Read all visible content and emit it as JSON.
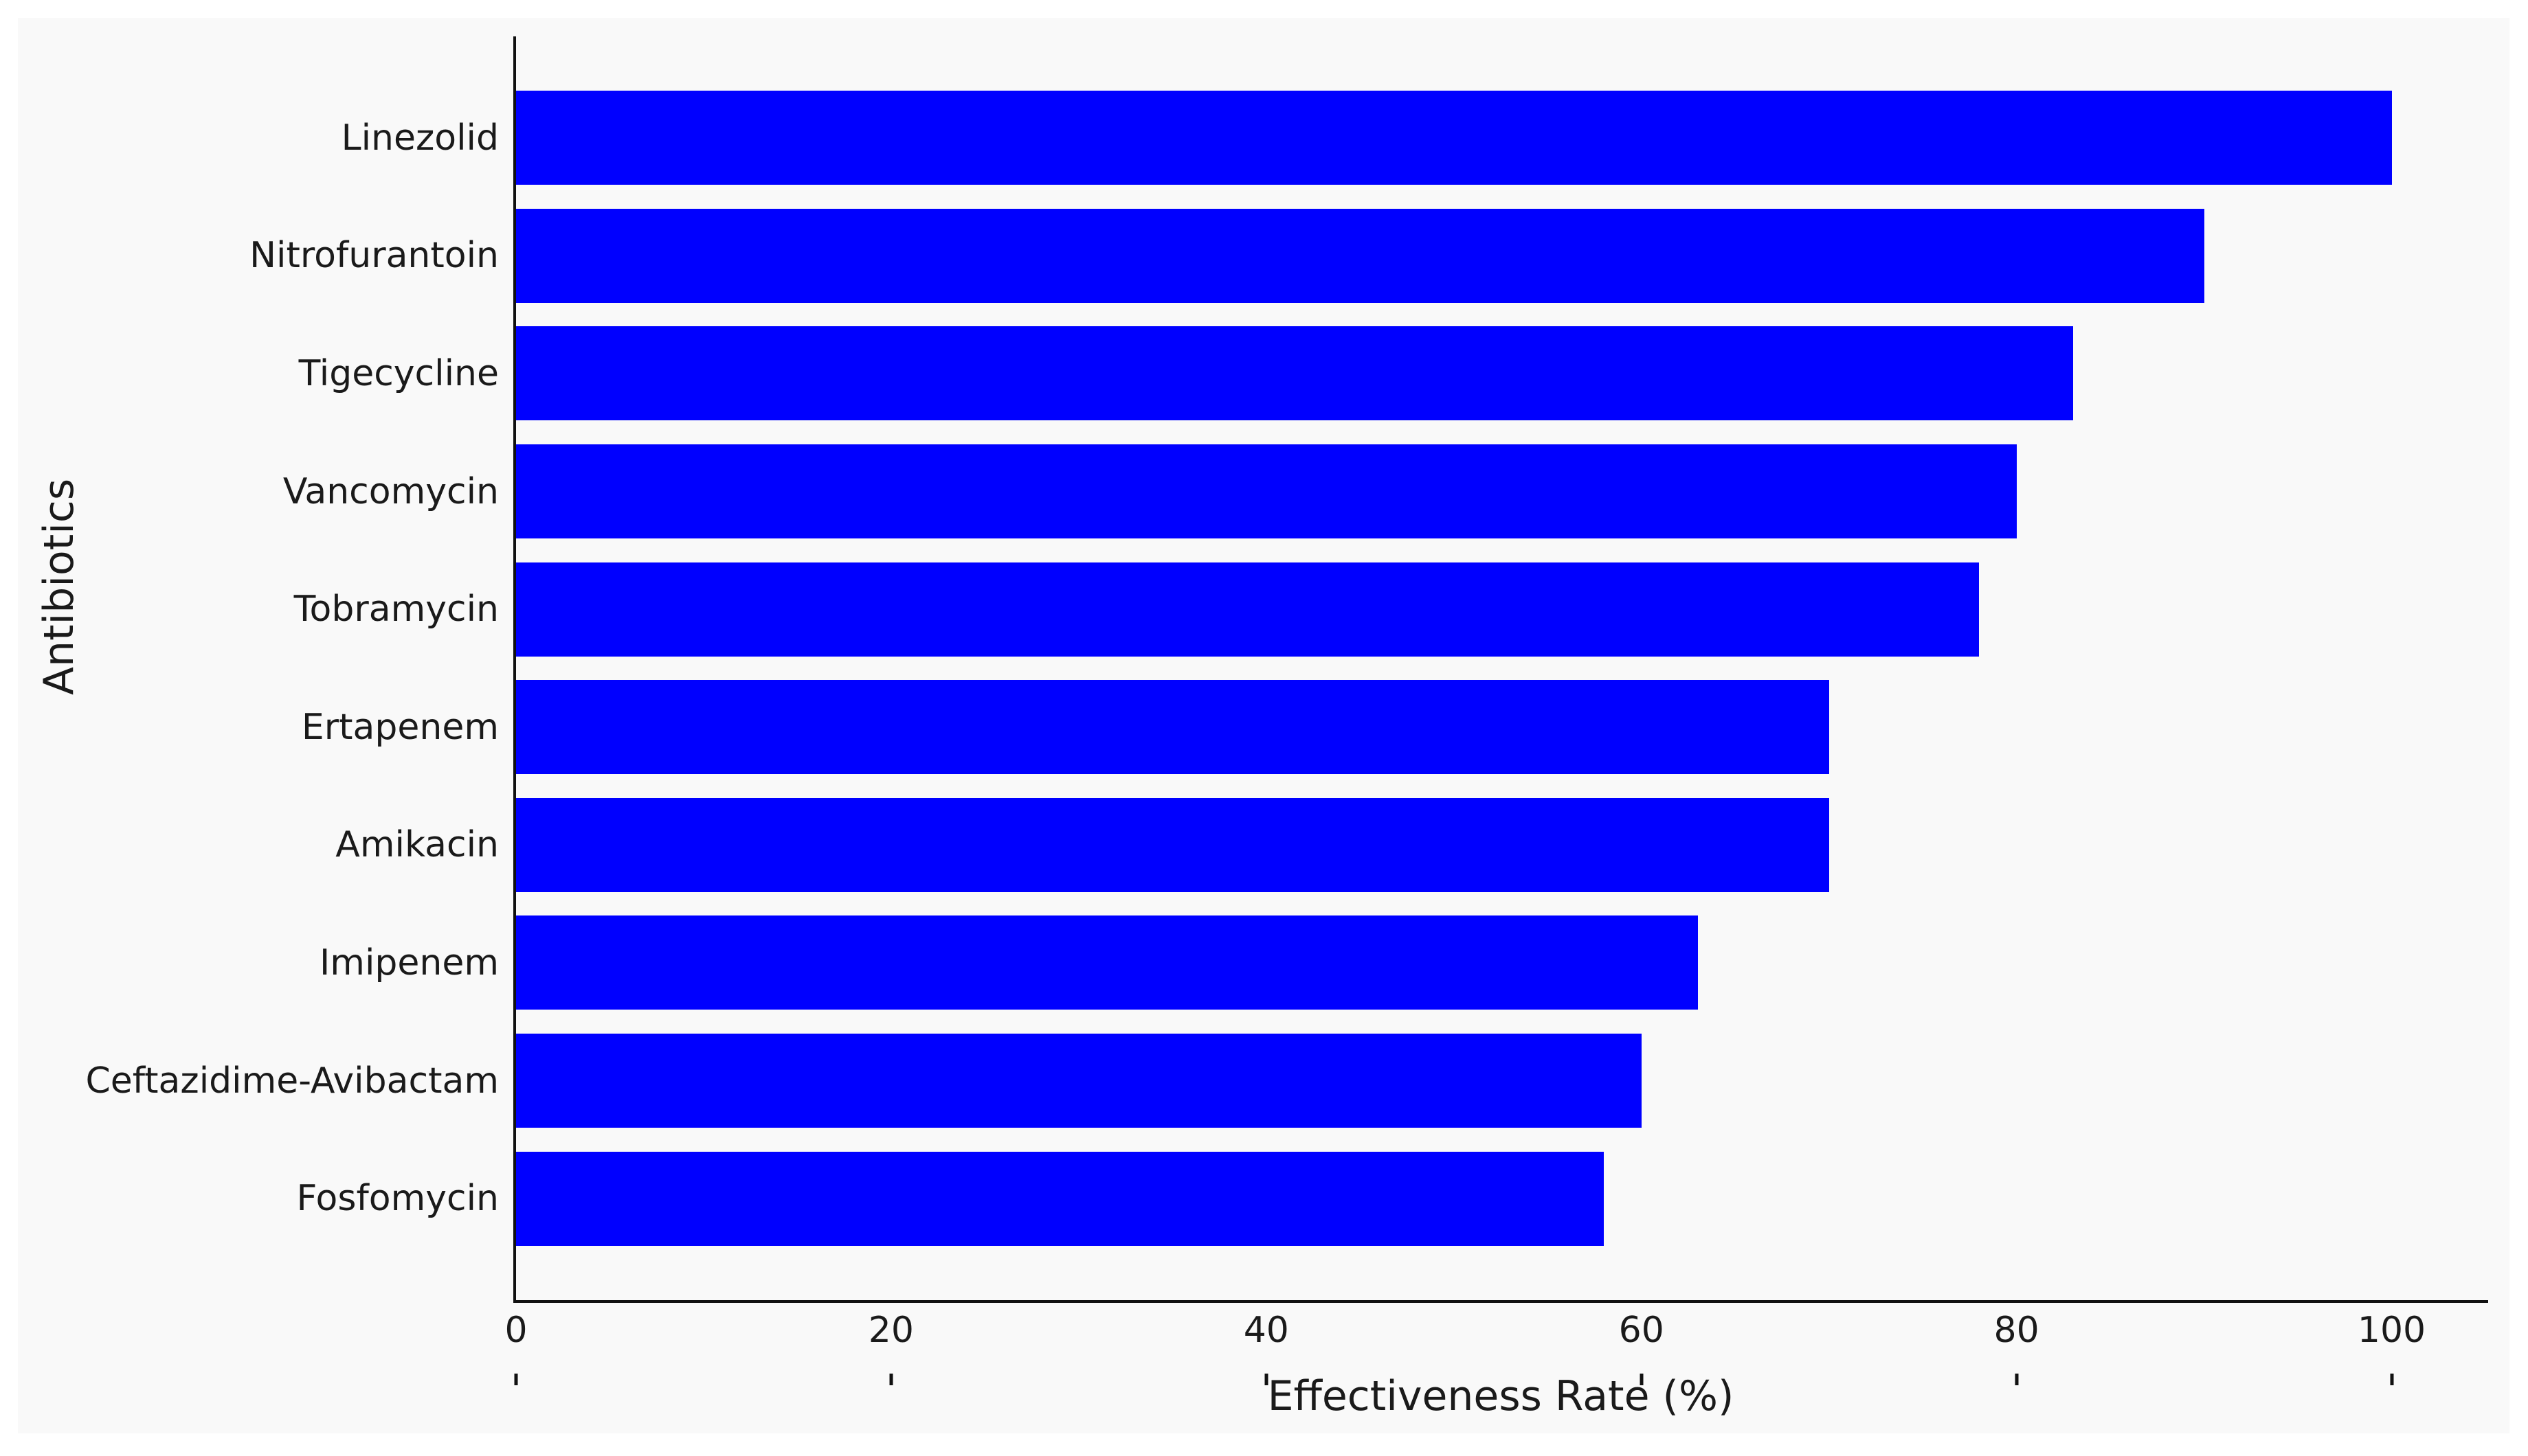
{
  "colors": {
    "bar": "#0000ff",
    "figure_background": "#f9f9f9",
    "page_background": "#ffffff",
    "axis": "#111111",
    "text": "#1a1a1a"
  },
  "chart_data": {
    "type": "bar",
    "orientation": "horizontal",
    "title": "",
    "xlabel": "Effectiveness Rate (%)",
    "ylabel": "Antibiotics",
    "categories": [
      "Linezolid",
      "Nitrofurantoin",
      "Tigecycline",
      "Vancomycin",
      "Tobramycin",
      "Ertapenem",
      "Amikacin",
      "Imipenem",
      "Ceftazidime-Avibactam",
      "Fosfomycin"
    ],
    "values": [
      100,
      90,
      83,
      80,
      78,
      70,
      70,
      63,
      60,
      58
    ],
    "xticks": [
      0,
      20,
      40,
      60,
      80,
      100
    ],
    "xlim": [
      0,
      105
    ],
    "grid": false,
    "legend": null,
    "tick_direction": "in"
  }
}
